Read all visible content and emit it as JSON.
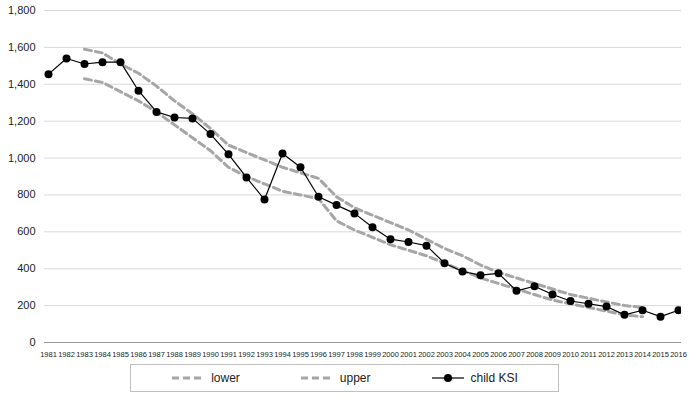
{
  "chart_data": {
    "type": "line",
    "x": [
      1981,
      1982,
      1983,
      1984,
      1985,
      1986,
      1987,
      1988,
      1989,
      1990,
      1991,
      1992,
      1993,
      1994,
      1995,
      1996,
      1997,
      1998,
      1999,
      2000,
      2001,
      2002,
      2003,
      2004,
      2005,
      2006,
      2007,
      2008,
      2009,
      2010,
      2011,
      2012,
      2013,
      2014,
      2015,
      2016
    ],
    "series": [
      {
        "name": "lower",
        "color": "#a6a6a6",
        "line_style": "dashed",
        "marker": "none",
        "values": [
          null,
          null,
          1430,
          1410,
          1360,
          1310,
          1250,
          1180,
          1110,
          1040,
          950,
          900,
          860,
          820,
          800,
          780,
          660,
          610,
          570,
          530,
          500,
          470,
          430,
          390,
          350,
          320,
          290,
          260,
          230,
          210,
          190,
          170,
          150,
          140,
          null,
          null
        ]
      },
      {
        "name": "upper",
        "color": "#a6a6a6",
        "line_style": "dashed",
        "marker": "none",
        "values": [
          null,
          null,
          1590,
          1570,
          1510,
          1460,
          1390,
          1310,
          1240,
          1160,
          1070,
          1030,
          990,
          950,
          920,
          890,
          790,
          730,
          690,
          650,
          610,
          560,
          510,
          470,
          420,
          380,
          350,
          320,
          290,
          260,
          240,
          220,
          200,
          190,
          null,
          null
        ]
      },
      {
        "name": "child KSI",
        "color": "#000000",
        "line_style": "solid",
        "marker": "circle",
        "values": [
          1455,
          1540,
          1510,
          1520,
          1520,
          1365,
          1250,
          1220,
          1215,
          1130,
          1020,
          895,
          775,
          1025,
          950,
          790,
          745,
          700,
          625,
          560,
          545,
          525,
          430,
          385,
          365,
          375,
          280,
          305,
          260,
          225,
          210,
          195,
          150,
          175,
          140,
          175
        ]
      }
    ],
    "ylim": [
      0,
      1800
    ],
    "yticks": [
      0,
      200,
      400,
      600,
      800,
      {
        "value": 1000,
        "label": "1,000"
      },
      {
        "value": 1200,
        "label": "1,200"
      },
      {
        "value": 1400,
        "label": "1,400"
      },
      {
        "value": 1600,
        "label": "1,600"
      },
      {
        "value": 1800,
        "label": "1,800"
      }
    ],
    "grid": true,
    "legend": "bottom"
  }
}
